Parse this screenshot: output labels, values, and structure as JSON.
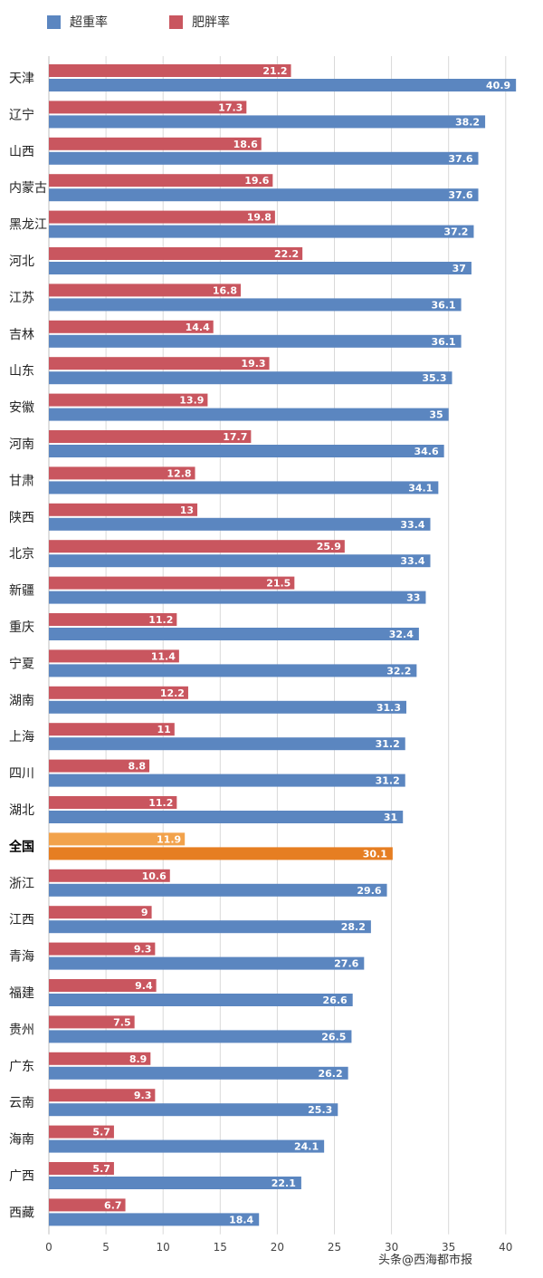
{
  "chart_data": {
    "type": "bar",
    "orientation": "horizontal",
    "categories": [
      "天津",
      "辽宁",
      "山西",
      "内蒙古",
      "黑龙江",
      "河北",
      "江苏",
      "吉林",
      "山东",
      "安徽",
      "河南",
      "甘肃",
      "陕西",
      "北京",
      "新疆",
      "重庆",
      "宁夏",
      "湖南",
      "上海",
      "四川",
      "湖北",
      "全国",
      "浙江",
      "江西",
      "青海",
      "福建",
      "贵州",
      "广东",
      "云南",
      "海南",
      "广西",
      "西藏"
    ],
    "highlight_category": "全国",
    "series": [
      {
        "name": "超重率",
        "color": "#5b86c0",
        "highlight_color": "#e67e22",
        "values": [
          40.9,
          38.2,
          37.6,
          37.6,
          37.2,
          37,
          36.1,
          36.1,
          35.3,
          35,
          34.6,
          34.1,
          33.4,
          33.4,
          33,
          32.4,
          32.2,
          31.3,
          31.2,
          31.2,
          31,
          30.1,
          29.6,
          28.2,
          27.6,
          26.6,
          26.5,
          26.2,
          25.3,
          24.1,
          22.1,
          18.4
        ]
      },
      {
        "name": "肥胖率",
        "color": "#c9565f",
        "highlight_color": "#f2a24b",
        "values": [
          21.2,
          17.3,
          18.6,
          19.6,
          19.8,
          22.2,
          16.8,
          14.4,
          19.3,
          13.9,
          17.7,
          12.8,
          13,
          25.9,
          21.5,
          11.2,
          11.4,
          12.2,
          11,
          8.8,
          11.2,
          11.9,
          10.6,
          9,
          9.3,
          9.4,
          7.5,
          8.9,
          9.3,
          5.7,
          5.7,
          6.7
        ]
      }
    ],
    "xlim": [
      0,
      40
    ],
    "xticks": [
      0,
      5,
      10,
      15,
      20,
      25,
      30,
      35,
      40
    ],
    "grid": true,
    "legend_position": "top-left"
  },
  "watermark": "头条@西海都市报"
}
